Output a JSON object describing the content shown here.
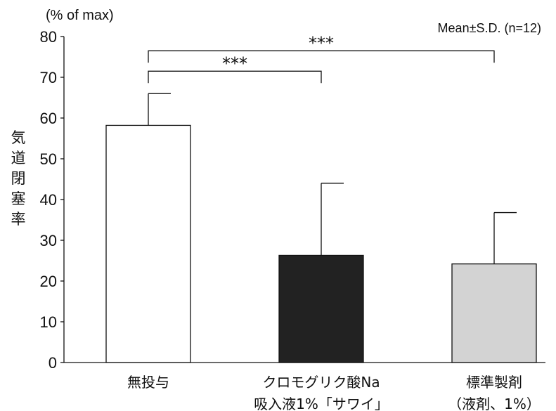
{
  "chart_data": {
    "type": "bar",
    "categories": [
      {
        "lines": [
          "無投与"
        ]
      },
      {
        "lines": [
          "クロモグリク酸Na",
          "吸入液1%「サワイ」"
        ]
      },
      {
        "lines": [
          "標準製剤",
          "（液剤、1%）"
        ]
      }
    ],
    "values": [
      58.2,
      26.3,
      24.2
    ],
    "errors": [
      7.8,
      17.7,
      12.6
    ],
    "bar_colors": [
      "#ffffff",
      "#222222",
      "#d3d3d3"
    ],
    "ylabel": "気道閉塞率",
    "y_unit": "(% of max)",
    "ylim": [
      0,
      80
    ],
    "yticks": [
      0,
      10,
      20,
      30,
      40,
      50,
      60,
      70,
      80
    ],
    "annotation": "Mean±S.D. (n=12)",
    "significance": [
      {
        "from": 0,
        "to": 1,
        "label": "***",
        "y": 71.5
      },
      {
        "from": 0,
        "to": 2,
        "label": "***",
        "y": 76.5
      }
    ]
  }
}
